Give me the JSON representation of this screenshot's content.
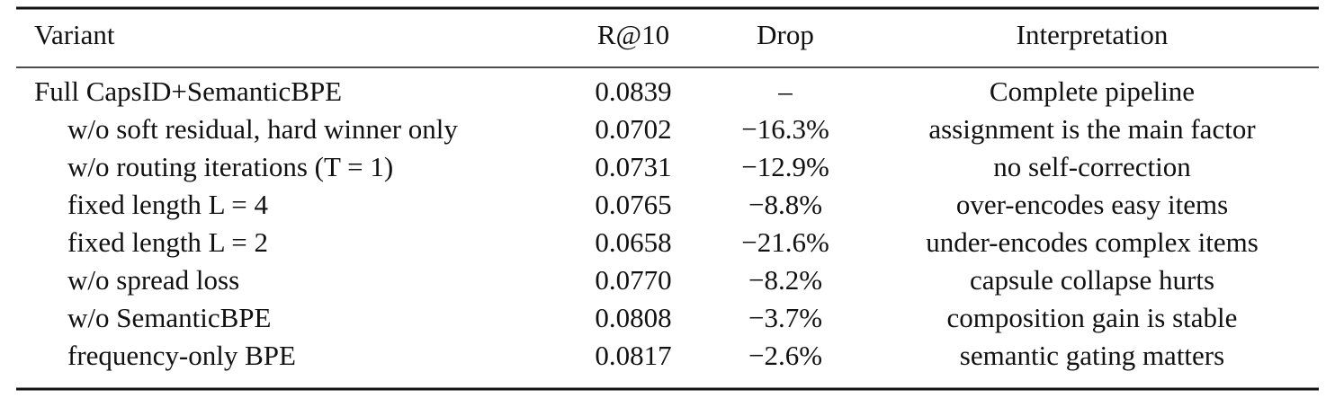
{
  "table": {
    "columns": [
      "Variant",
      "R@10",
      "Drop",
      "Interpretation"
    ],
    "rows": [
      [
        "Full CapsID+SemanticBPE",
        "0.0839",
        "–",
        "Complete pipeline"
      ],
      [
        "w/o soft residual, hard winner only",
        "0.0702",
        "−16.3%",
        "assignment is the main factor"
      ],
      [
        "w/o routing iterations (T = 1)",
        "0.0731",
        "−12.9%",
        "no self-correction"
      ],
      [
        "fixed length L = 4",
        "0.0765",
        "−8.8%",
        "over-encodes easy items"
      ],
      [
        "fixed length L = 2",
        "0.0658",
        "−21.6%",
        "under-encodes complex items"
      ],
      [
        "w/o spread loss",
        "0.0770",
        "−8.2%",
        "capsule collapse hurts"
      ],
      [
        "w/o SemanticBPE",
        "0.0808",
        "−3.7%",
        "composition gain is stable"
      ],
      [
        "frequency-only BPE",
        "0.0817",
        "−2.6%",
        "semantic gating matters"
      ]
    ]
  }
}
